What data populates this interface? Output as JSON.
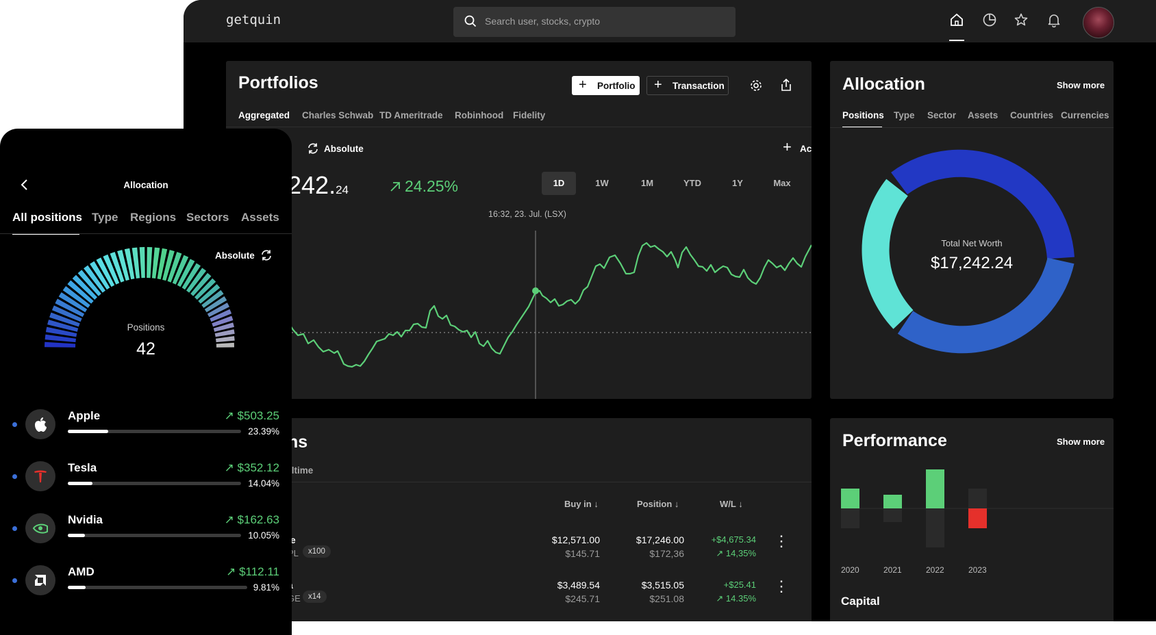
{
  "app": {
    "logo": "getquin",
    "search_placeholder": "Search user, stocks, crypto",
    "nav_icons": [
      "home-icon",
      "pie-chart-icon",
      "star-icon",
      "bell-icon"
    ]
  },
  "portfolios": {
    "title": "Portfolios",
    "add_portfolio": "Portfolio",
    "add_transaction": "Transaction",
    "tabs": [
      "Aggregated",
      "Charles Schwab",
      "TD Ameritrade",
      "Robinhood",
      "Fidelity"
    ],
    "mode_label": "Absolute",
    "add_label": "Ac",
    "value_main": "242.",
    "value_cents": "24",
    "change": "24.25%",
    "ranges": [
      "1D",
      "1W",
      "1M",
      "YTD",
      "1Y",
      "Max"
    ],
    "active_range": "1D",
    "hover_label": "16:32, 23. Jul. (LSX)"
  },
  "positions": {
    "title_fragment": "ns",
    "tab_fragment": "lltime",
    "headers": {
      "buy_in": "Buy in",
      "position": "Position",
      "wl": "W/L"
    },
    "rows": [
      {
        "name": "le",
        "ticker": "PL",
        "qty": "x100",
        "buy_in": "$12,571.00",
        "buy_in_unit": "$145.71",
        "position": "$17,246.00",
        "position_unit": "$172,36",
        "wl": "+$4,675.34",
        "wl_pct": "14,35%"
      },
      {
        "name": "a",
        "ticker": "GE",
        "qty": "x14",
        "buy_in": "$3,489.54",
        "buy_in_unit": "$245.71",
        "position": "$3,515.05",
        "position_unit": "$251.08",
        "wl": "+$25.41",
        "wl_pct": "14.35%"
      }
    ]
  },
  "allocation": {
    "title": "Allocation",
    "show_more": "Show more",
    "tabs": [
      "Positions",
      "Type",
      "Sector",
      "Assets",
      "Countries",
      "Currencies"
    ],
    "center_label": "Total Net Worth",
    "center_value": "$17,242.24",
    "colors": [
      "#2238c4",
      "#2f62c8",
      "#5fe3d6"
    ]
  },
  "performance": {
    "title": "Performance",
    "show_more": "Show more",
    "years": [
      "2020",
      "2021",
      "2022",
      "2023"
    ],
    "subtitle": "Capital"
  },
  "mobile": {
    "title": "Allocation",
    "tabs": [
      "All positions",
      "Type",
      "Regions",
      "Sectors",
      "Assets"
    ],
    "mode_label": "Absolute",
    "gauge_label": "Positions",
    "gauge_value": "42",
    "items": [
      {
        "name": "Apple",
        "value": "$503.25",
        "pct": "23.39%",
        "fill": 0.2339,
        "logo": "apple-icon"
      },
      {
        "name": "Tesla",
        "value": "$352.12",
        "pct": "14.04%",
        "fill": 0.1404,
        "logo": "tesla-icon"
      },
      {
        "name": "Nvidia",
        "value": "$162.63",
        "pct": "10.05%",
        "fill": 0.1005,
        "logo": "nvidia-icon"
      },
      {
        "name": "AMD",
        "value": "$112.11",
        "pct": "9.81%",
        "fill": 0.0981,
        "logo": "amd-icon"
      }
    ]
  }
}
